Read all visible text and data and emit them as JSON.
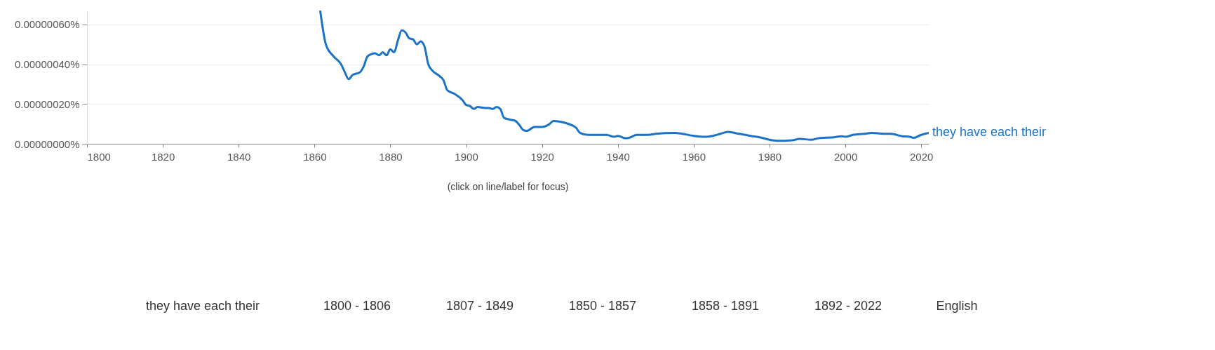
{
  "chart_data": {
    "type": "line",
    "x": [
      1861.5,
      1863,
      1865,
      1867,
      1868,
      1869,
      1870,
      1872,
      1873,
      1874,
      1876,
      1877,
      1878,
      1879,
      1880,
      1881,
      1882,
      1883,
      1884,
      1885,
      1886,
      1887,
      1888,
      1889,
      1890,
      1891,
      1893,
      1894,
      1895,
      1897,
      1899,
      1900,
      1901,
      1902,
      1903,
      1905,
      1906,
      1907,
      1908,
      1909,
      1910,
      1912,
      1913,
      1914,
      1915,
      1916,
      1918,
      1920,
      1922,
      1923,
      1925,
      1927,
      1929,
      1930,
      1932,
      1935,
      1937,
      1939,
      1940,
      1942,
      1943,
      1945,
      1948,
      1950,
      1955,
      1957,
      1960,
      1963,
      1965,
      1967,
      1969,
      1972,
      1975,
      1978,
      1980,
      1982,
      1986,
      1988,
      1991,
      1993,
      1997,
      1999,
      2000,
      2002,
      2005,
      2007,
      2010,
      2012,
      2015,
      2017,
      2018,
      2020,
      2022
    ],
    "series": [
      {
        "name": "they have each their",
        "color": "#1a73c8",
        "values": [
          6.7e-07,
          5e-07,
          4.4e-07,
          4e-07,
          3.6e-07,
          3.25e-07,
          3.45e-07,
          3.6e-07,
          3.9e-07,
          4.4e-07,
          4.55e-07,
          4.45e-07,
          4.6e-07,
          4.45e-07,
          4.75e-07,
          4.6e-07,
          5.2e-07,
          5.7e-07,
          5.6e-07,
          5.3e-07,
          5.25e-07,
          5e-07,
          5.15e-07,
          4.9e-07,
          4e-07,
          3.7e-07,
          3.4e-07,
          3.2e-07,
          2.7e-07,
          2.5e-07,
          2.2e-07,
          1.95e-07,
          1.9e-07,
          1.75e-07,
          1.85e-07,
          1.8e-07,
          1.8e-07,
          1.75e-07,
          1.85e-07,
          1.75e-07,
          1.3e-07,
          1.2e-07,
          1.15e-07,
          9.5e-08,
          7e-08,
          6.5e-08,
          8.5e-08,
          8.5e-08,
          1e-07,
          1.15e-07,
          1.1e-07,
          1e-07,
          8e-08,
          5.5e-08,
          4.5e-08,
          4.5e-08,
          4.5e-08,
          3.5e-08,
          4e-08,
          2.8e-08,
          3e-08,
          4.5e-08,
          4.5e-08,
          5e-08,
          5.5e-08,
          5e-08,
          4e-08,
          3.5e-08,
          4e-08,
          5e-08,
          6e-08,
          5e-08,
          4e-08,
          3e-08,
          2e-08,
          1.5e-08,
          1.8e-08,
          2.5e-08,
          2e-08,
          2.8e-08,
          3.3e-08,
          3.8e-08,
          3.5e-08,
          4.5e-08,
          5e-08,
          5.5e-08,
          5e-08,
          5e-08,
          3.8e-08,
          3.5e-08,
          3e-08,
          4.5e-08,
          5.5e-08
        ]
      }
    ],
    "xlim": [
      1800,
      2022
    ],
    "xticks": [
      1800,
      1820,
      1840,
      1860,
      1880,
      1900,
      1920,
      1940,
      1960,
      1980,
      2000,
      2020
    ],
    "ylim": [
      0,
      6.7e-07
    ],
    "yticks": [
      {
        "value": 0,
        "label": "0.00000000%"
      },
      {
        "value": 2e-07,
        "label": "0.00000020%"
      },
      {
        "value": 4e-07,
        "label": "0.00000040%"
      },
      {
        "value": 6e-07,
        "label": "0.00000060%"
      }
    ],
    "grid": "y",
    "legend": false,
    "marker": "none",
    "line_style": "solid",
    "annotations": [
      "(click on line/label for focus)",
      "they have each their",
      "1800 - 1806",
      "1807 - 1849",
      "1850 - 1857",
      "1858 - 1891",
      "1892 - 2022",
      "English"
    ]
  }
}
